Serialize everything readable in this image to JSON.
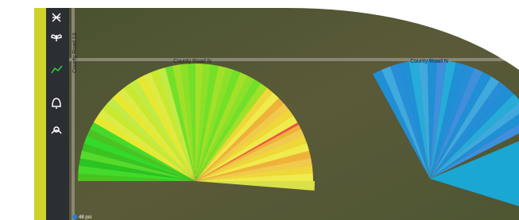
{
  "map": {
    "road_labels": [
      "County Road 13",
      "County Road N",
      "County Road N"
    ],
    "pressure_label": "48 psi"
  }
}
